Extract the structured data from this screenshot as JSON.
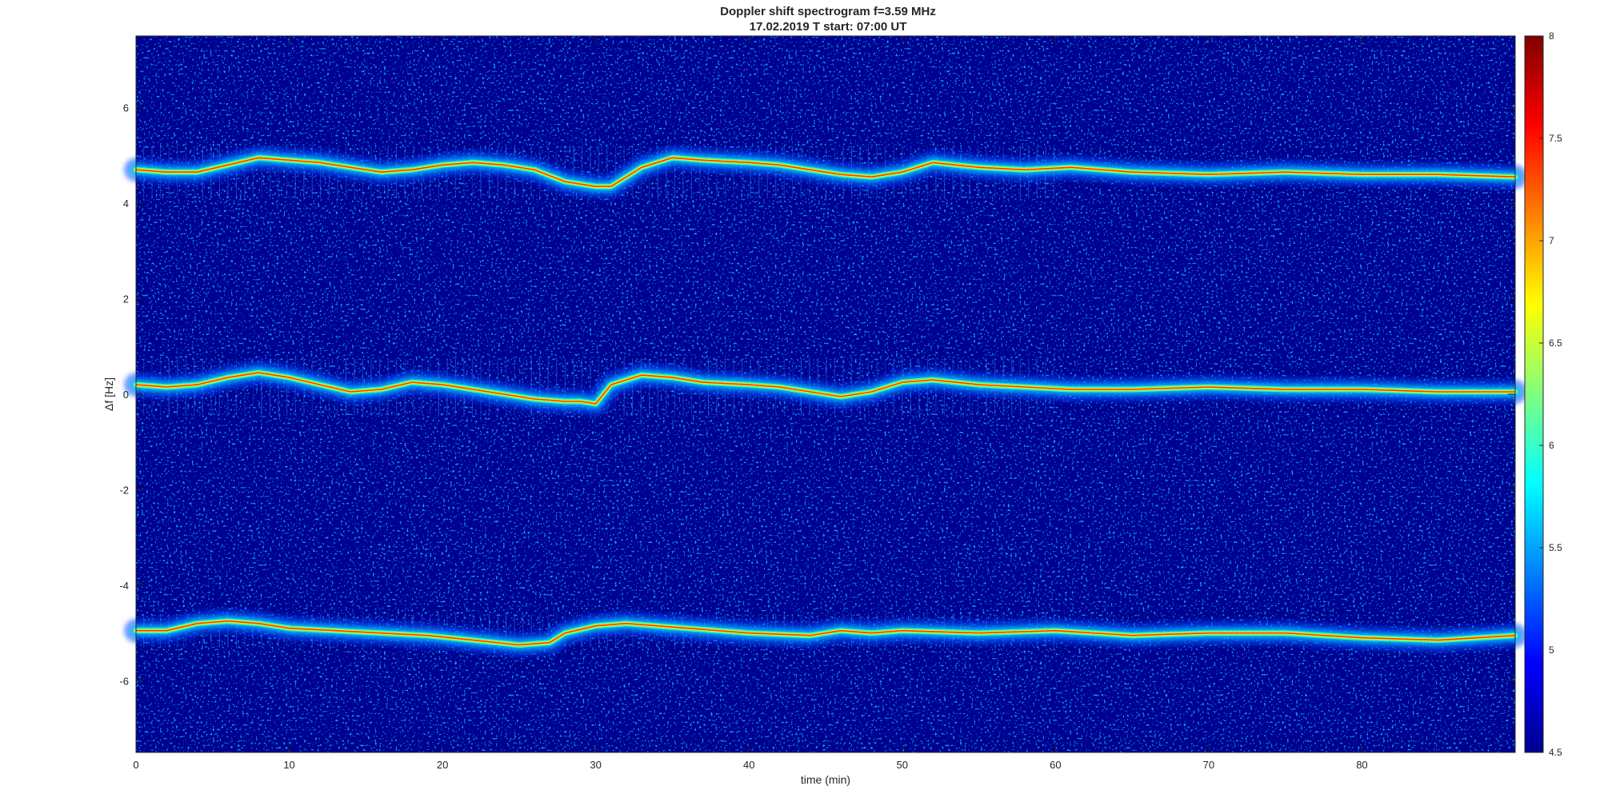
{
  "chart_data": {
    "type": "heatmap",
    "title": "Doppler shift spectrogram f=3.59 MHz",
    "subtitle": "17.02.2019   T start: 07:00 UT",
    "xlabel": "time (min)",
    "ylabel": "Δf [Hz]",
    "xlim": [
      0,
      90
    ],
    "ylim": [
      -7.5,
      7.5
    ],
    "x_ticks": [
      0,
      10,
      20,
      30,
      40,
      50,
      60,
      70,
      80
    ],
    "y_ticks": [
      6,
      4,
      2,
      0,
      -2,
      -4,
      -6
    ],
    "colorbar": {
      "colormap": "jet",
      "range": [
        4.5,
        8
      ],
      "ticks": [
        "8",
        "7.5",
        "7",
        "6.5",
        "6",
        "5.5",
        "5",
        "4.5"
      ]
    },
    "background_color": "#00008f",
    "series": [
      {
        "x": [
          0,
          2,
          4,
          6,
          8,
          10,
          12,
          14,
          16,
          18,
          20,
          22,
          24,
          26,
          28,
          30,
          31,
          33,
          35,
          37,
          40,
          42,
          44,
          46,
          48,
          50,
          52,
          55,
          58,
          61,
          65,
          70,
          75,
          80,
          85,
          90
        ],
        "values": [
          4.7,
          4.65,
          4.65,
          4.8,
          4.95,
          4.9,
          4.85,
          4.75,
          4.65,
          4.7,
          4.8,
          4.85,
          4.8,
          4.7,
          4.45,
          4.35,
          4.35,
          4.75,
          4.95,
          4.9,
          4.85,
          4.8,
          4.7,
          4.6,
          4.55,
          4.65,
          4.85,
          4.75,
          4.7,
          4.75,
          4.65,
          4.6,
          4.65,
          4.6,
          4.6,
          4.55
        ]
      },
      {
        "x": [
          0,
          2,
          4,
          6,
          8,
          10,
          12,
          14,
          16,
          18,
          20,
          22,
          24,
          26,
          28,
          29,
          30,
          31,
          33,
          35,
          37,
          40,
          42,
          44,
          46,
          48,
          50,
          52,
          55,
          58,
          61,
          65,
          70,
          75,
          80,
          85,
          90
        ],
        "values": [
          0.2,
          0.15,
          0.2,
          0.35,
          0.45,
          0.35,
          0.2,
          0.05,
          0.1,
          0.25,
          0.2,
          0.1,
          0.0,
          -0.1,
          -0.15,
          -0.15,
          -0.2,
          0.2,
          0.4,
          0.35,
          0.25,
          0.2,
          0.15,
          0.05,
          -0.05,
          0.05,
          0.25,
          0.3,
          0.2,
          0.15,
          0.1,
          0.1,
          0.15,
          0.1,
          0.1,
          0.05,
          0.05
        ]
      },
      {
        "x": [
          0,
          2,
          4,
          6,
          8,
          10,
          13,
          16,
          19,
          22,
          25,
          27,
          28,
          30,
          32,
          34,
          36,
          40,
          44,
          46,
          48,
          50,
          55,
          60,
          65,
          70,
          75,
          80,
          85,
          90
        ],
        "values": [
          -4.95,
          -4.95,
          -4.8,
          -4.75,
          -4.8,
          -4.9,
          -4.95,
          -5.0,
          -5.05,
          -5.15,
          -5.25,
          -5.2,
          -5.0,
          -4.85,
          -4.8,
          -4.85,
          -4.9,
          -5.0,
          -5.05,
          -4.95,
          -5.0,
          -4.95,
          -5.0,
          -4.95,
          -5.05,
          -5.0,
          -5.0,
          -5.1,
          -5.15,
          -5.05
        ]
      }
    ]
  }
}
